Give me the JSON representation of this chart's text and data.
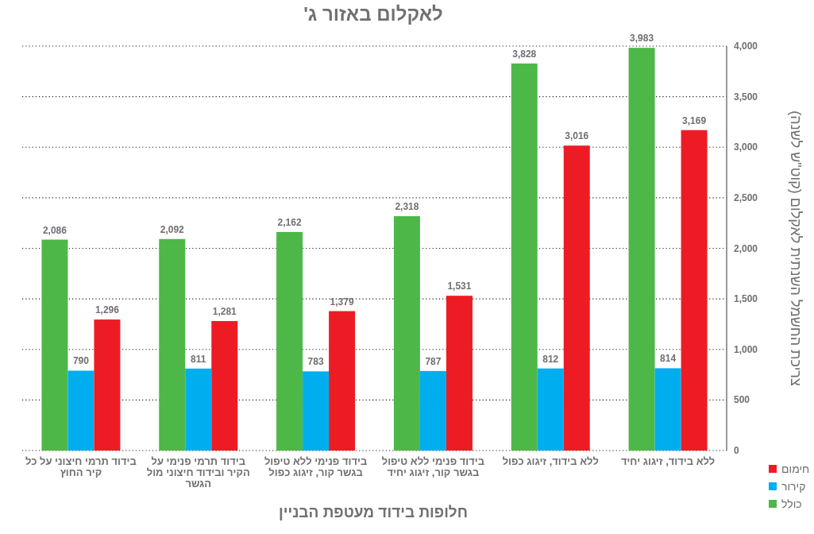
{
  "chart_data": {
    "type": "bar",
    "title": "לאקלום באזור ג'",
    "xlabel": "חלופות בידוד מעטפת הבניין",
    "ylabel": "צריכת החשמל השנתית לאקלום (קוט\"ש לשנה)",
    "categories": [
      "בידוד תרמי חיצוני על כל קיר החוץ",
      "בידוד תרמי פנימי על הקיר ובידוד חיצוני מול הגשר",
      "בידוד פנימי ללא טיפול בגשר קור, זיגוג כפול",
      "בידוד פנימי ללא טיפול בגשר קור, זיגוג יחיד",
      "ללא בידוד, זיגוג כפול",
      "ללא בידוד, זיגוג יחיד"
    ],
    "series": [
      {
        "name": "כולל",
        "color": "#4db848",
        "values": [
          2086,
          2092,
          2162,
          2318,
          3828,
          3983
        ],
        "value_labels": [
          "2,086",
          "2,092",
          "2,162",
          "2,318",
          "3,828",
          "3,983"
        ]
      },
      {
        "name": "קירור",
        "color": "#00aeef",
        "values": [
          790,
          811,
          783,
          787,
          812,
          814
        ],
        "value_labels": [
          "790",
          "811",
          "783",
          "787",
          "812",
          "814"
        ]
      },
      {
        "name": "חימום",
        "color": "#ed1c24",
        "values": [
          1296,
          1281,
          1379,
          1531,
          3016,
          3169
        ],
        "value_labels": [
          "1,296",
          "1,281",
          "1,379",
          "1,531",
          "3,016",
          "3,169"
        ]
      }
    ],
    "ylim": [
      0,
      4000
    ],
    "yticks": [
      0,
      500,
      {
        "value": 1000,
        "label": "1,000"
      },
      {
        "value": 1500,
        "label": "1,500"
      },
      {
        "value": 2000,
        "label": "2,000"
      },
      {
        "value": 2500,
        "label": "2,500"
      },
      {
        "value": 3000,
        "label": "3,000"
      },
      {
        "value": 3500,
        "label": "3,500"
      },
      {
        "value": 4000,
        "label": "4,000"
      }
    ],
    "grid": "y",
    "legend": "bottom right"
  }
}
